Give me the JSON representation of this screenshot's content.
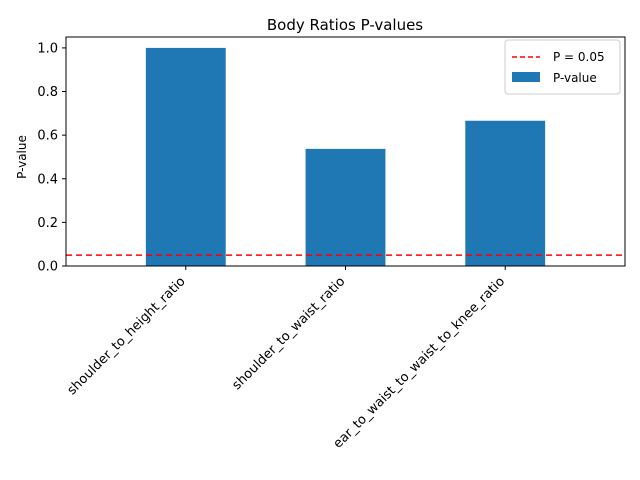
{
  "chart_data": {
    "type": "bar",
    "title": "Body Ratios P-values",
    "xlabel": "",
    "ylabel": "P-value",
    "categories": [
      "shoulder_to_height_ratio",
      "shoulder_to_waist_ratio",
      "ear_to_waist_to_waist_to_knee_ratio"
    ],
    "series": [
      {
        "name": "P-value",
        "values": [
          1.0,
          0.537,
          0.666
        ],
        "color": "#1f77b4"
      }
    ],
    "reference_line": {
      "label": "P = 0.05",
      "value": 0.05,
      "color": "#ff0000",
      "style": "dashed"
    },
    "ylim": [
      0,
      1.05
    ],
    "yticks": [
      0.0,
      0.2,
      0.4,
      0.6,
      0.8,
      1.0
    ],
    "ytick_labels": [
      "0.0",
      "0.2",
      "0.4",
      "0.6",
      "0.8",
      "1.0"
    ],
    "grid": false,
    "legend_position": "upper right",
    "legend_entries": [
      "P = 0.05",
      "P-value"
    ]
  }
}
